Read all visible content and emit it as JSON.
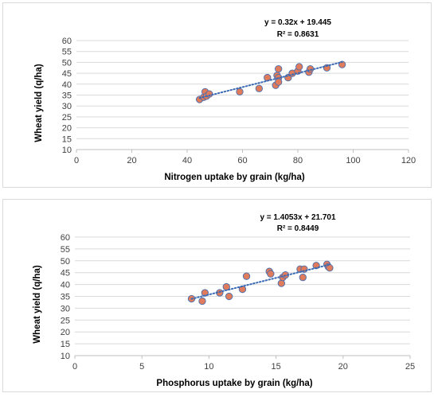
{
  "chart_data": [
    {
      "type": "scatter",
      "title": "",
      "xlabel": "Nitrogen uptake by grain (kg/ha)",
      "ylabel": "Wheat yield (q/ha)",
      "xlim": [
        0,
        120
      ],
      "ylim": [
        10,
        60
      ],
      "x_ticks": [
        "0",
        "20",
        "40",
        "60",
        "80",
        "100",
        "120"
      ],
      "y_ticks": [
        "10",
        "15",
        "20",
        "25",
        "30",
        "35",
        "40",
        "45",
        "50",
        "55",
        "60"
      ],
      "grid": "horizontal",
      "trendline": {
        "type": "linear",
        "slope": 0.32,
        "intercept": 19.445,
        "x_range": [
          44.5,
          96
        ]
      },
      "equation_text": "y = 0.32x + 19.445",
      "r2_text": "R² = 0.8631",
      "marker_color": "#e07b5b",
      "trend_color": "#3b6bb5",
      "x": [
        44.5,
        46,
        46.5,
        47,
        48,
        59,
        66,
        69,
        72,
        72.5,
        73,
        73,
        73,
        76.5,
        78,
        80,
        80.5,
        84,
        84.5,
        90.5,
        96
      ],
      "y": [
        33,
        34,
        36.5,
        34.5,
        35.5,
        36.5,
        38,
        43,
        39.5,
        44,
        47,
        43,
        41,
        43,
        45,
        46,
        48,
        45.5,
        47,
        47.5,
        49
      ]
    },
    {
      "type": "scatter",
      "title": "",
      "xlabel": "Phosphorus uptake by grain (kg/ha)",
      "ylabel": "Wheat yield (q/ha)",
      "xlim": [
        0,
        25
      ],
      "ylim": [
        10,
        60
      ],
      "x_ticks": [
        "0",
        "5",
        "10",
        "15",
        "20",
        "25"
      ],
      "y_ticks": [
        "10",
        "15",
        "20",
        "25",
        "30",
        "35",
        "40",
        "45",
        "50",
        "55",
        "60"
      ],
      "grid": "horizontal",
      "trendline": {
        "type": "linear",
        "slope": 1.4053,
        "intercept": 21.701,
        "x_range": [
          8.7,
          19
        ]
      },
      "equation_text": "y = 1.4053x + 21.701",
      "r2_text": "R² = 0.8449",
      "marker_color": "#e07b5b",
      "trend_color": "#3b6bb5",
      "x": [
        8.7,
        9.5,
        9.7,
        10.8,
        11.3,
        11.5,
        12.5,
        12.8,
        14.5,
        14.6,
        15.4,
        15.5,
        15.7,
        16.8,
        17.0,
        17.1,
        18.0,
        18.8,
        18.9,
        19.0
      ],
      "y": [
        34,
        33,
        36.5,
        36.5,
        39,
        35,
        38,
        43.5,
        45.5,
        44.5,
        40.5,
        43,
        44,
        46.5,
        43,
        46.5,
        48,
        48.5,
        47.5,
        47
      ]
    }
  ]
}
